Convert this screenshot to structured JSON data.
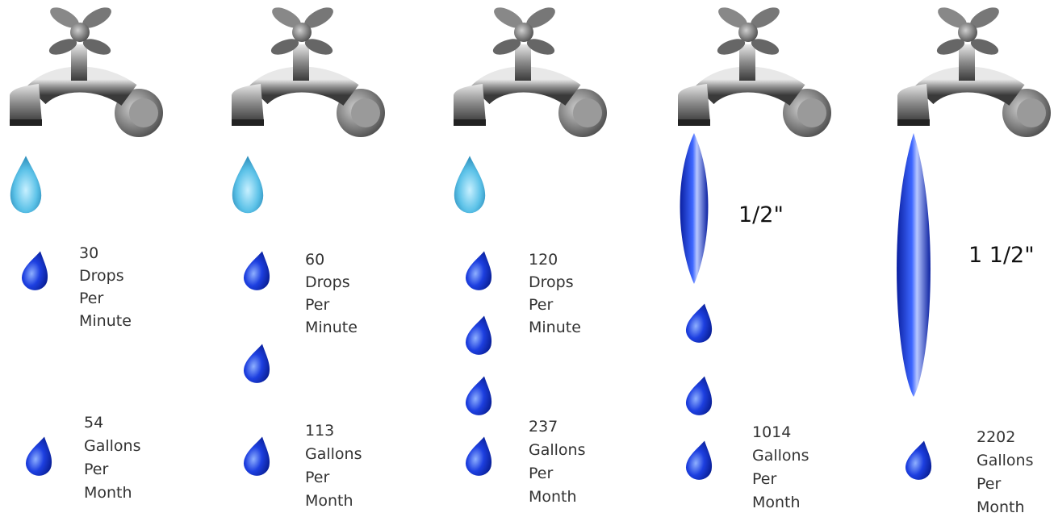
{
  "panels": [
    {
      "drops_per_minute": 30,
      "rate_words": [
        "Drops",
        "Per",
        "Minute"
      ],
      "gallons_per_month": 54,
      "usage_words": [
        "Gallons",
        "Per",
        "Month"
      ]
    },
    {
      "drops_per_minute": 60,
      "rate_words": [
        "Drops",
        "Per",
        "Minute"
      ],
      "gallons_per_month": 113,
      "usage_words": [
        "Gallons",
        "Per",
        "Month"
      ]
    },
    {
      "drops_per_minute": 120,
      "rate_words": [
        "Drops",
        "Per",
        "Minute"
      ],
      "gallons_per_month": 237,
      "usage_words": [
        "Gallons",
        "Per",
        "Month"
      ]
    },
    {
      "stream_label": "1/2\"",
      "gallons_per_month": 1014,
      "usage_words": [
        "Gallons",
        "Per",
        "Month"
      ]
    },
    {
      "stream_label": "1 1/2\"",
      "gallons_per_month": 2202,
      "usage_words": [
        "Gallons",
        "Per",
        "Month"
      ]
    }
  ]
}
